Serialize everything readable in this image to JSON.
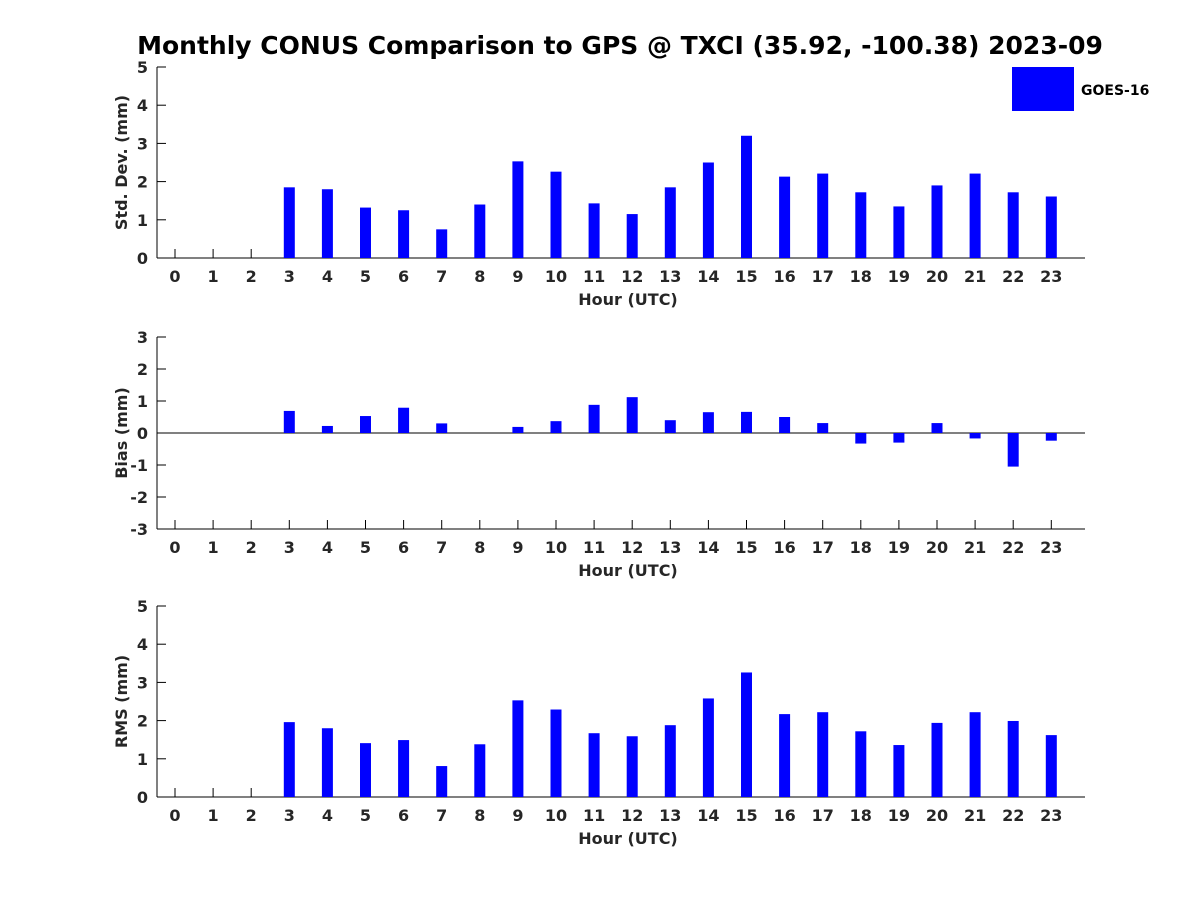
{
  "title": "Monthly CONUS Comparison to GPS @ TXCI (35.92, -100.38) 2023-09",
  "legend": {
    "label": "GOES-16",
    "color": "#0000ff"
  },
  "chart_data": [
    {
      "type": "bar",
      "xlabel": "Hour (UTC)",
      "ylabel": "Std. Dev. (mm)",
      "ylim": [
        0,
        5
      ],
      "yticks": [
        0,
        1,
        2,
        3,
        4,
        5
      ],
      "categories": [
        "0",
        "1",
        "2",
        "3",
        "4",
        "5",
        "6",
        "7",
        "8",
        "9",
        "10",
        "11",
        "12",
        "13",
        "14",
        "15",
        "16",
        "17",
        "18",
        "19",
        "20",
        "21",
        "22",
        "23"
      ],
      "series": [
        {
          "name": "GOES-16",
          "values": [
            null,
            null,
            null,
            1.85,
            1.8,
            1.32,
            1.25,
            0.75,
            1.4,
            2.53,
            2.26,
            1.43,
            1.15,
            1.85,
            2.5,
            3.2,
            2.13,
            2.21,
            1.72,
            1.35,
            1.9,
            2.21,
            1.72,
            1.61
          ]
        }
      ],
      "legend": "top-right",
      "grid": false
    },
    {
      "type": "bar",
      "xlabel": "Hour (UTC)",
      "ylabel": "Bias (mm)",
      "ylim": [
        -3,
        3
      ],
      "yticks": [
        -3,
        -2,
        -1,
        0,
        1,
        2,
        3
      ],
      "categories": [
        "0",
        "1",
        "2",
        "3",
        "4",
        "5",
        "6",
        "7",
        "8",
        "9",
        "10",
        "11",
        "12",
        "13",
        "14",
        "15",
        "16",
        "17",
        "18",
        "19",
        "20",
        "21",
        "22",
        "23"
      ],
      "series": [
        {
          "name": "GOES-16",
          "values": [
            null,
            null,
            null,
            0.69,
            0.22,
            0.53,
            0.79,
            0.3,
            0.0,
            0.19,
            0.37,
            0.88,
            1.12,
            0.4,
            0.65,
            0.66,
            0.5,
            0.31,
            -0.33,
            -0.3,
            0.31,
            -0.17,
            -1.05,
            -0.24
          ]
        }
      ],
      "grid": false
    },
    {
      "type": "bar",
      "xlabel": "Hour (UTC)",
      "ylabel": "RMS (mm)",
      "ylim": [
        0,
        5
      ],
      "yticks": [
        0,
        1,
        2,
        3,
        4,
        5
      ],
      "categories": [
        "0",
        "1",
        "2",
        "3",
        "4",
        "5",
        "6",
        "7",
        "8",
        "9",
        "10",
        "11",
        "12",
        "13",
        "14",
        "15",
        "16",
        "17",
        "18",
        "19",
        "20",
        "21",
        "22",
        "23"
      ],
      "series": [
        {
          "name": "GOES-16",
          "values": [
            null,
            null,
            null,
            1.96,
            1.8,
            1.41,
            1.49,
            0.81,
            1.38,
            2.53,
            2.29,
            1.67,
            1.59,
            1.88,
            2.58,
            3.26,
            2.17,
            2.22,
            1.72,
            1.36,
            1.94,
            2.22,
            1.99,
            1.62
          ]
        }
      ],
      "grid": false
    }
  ]
}
